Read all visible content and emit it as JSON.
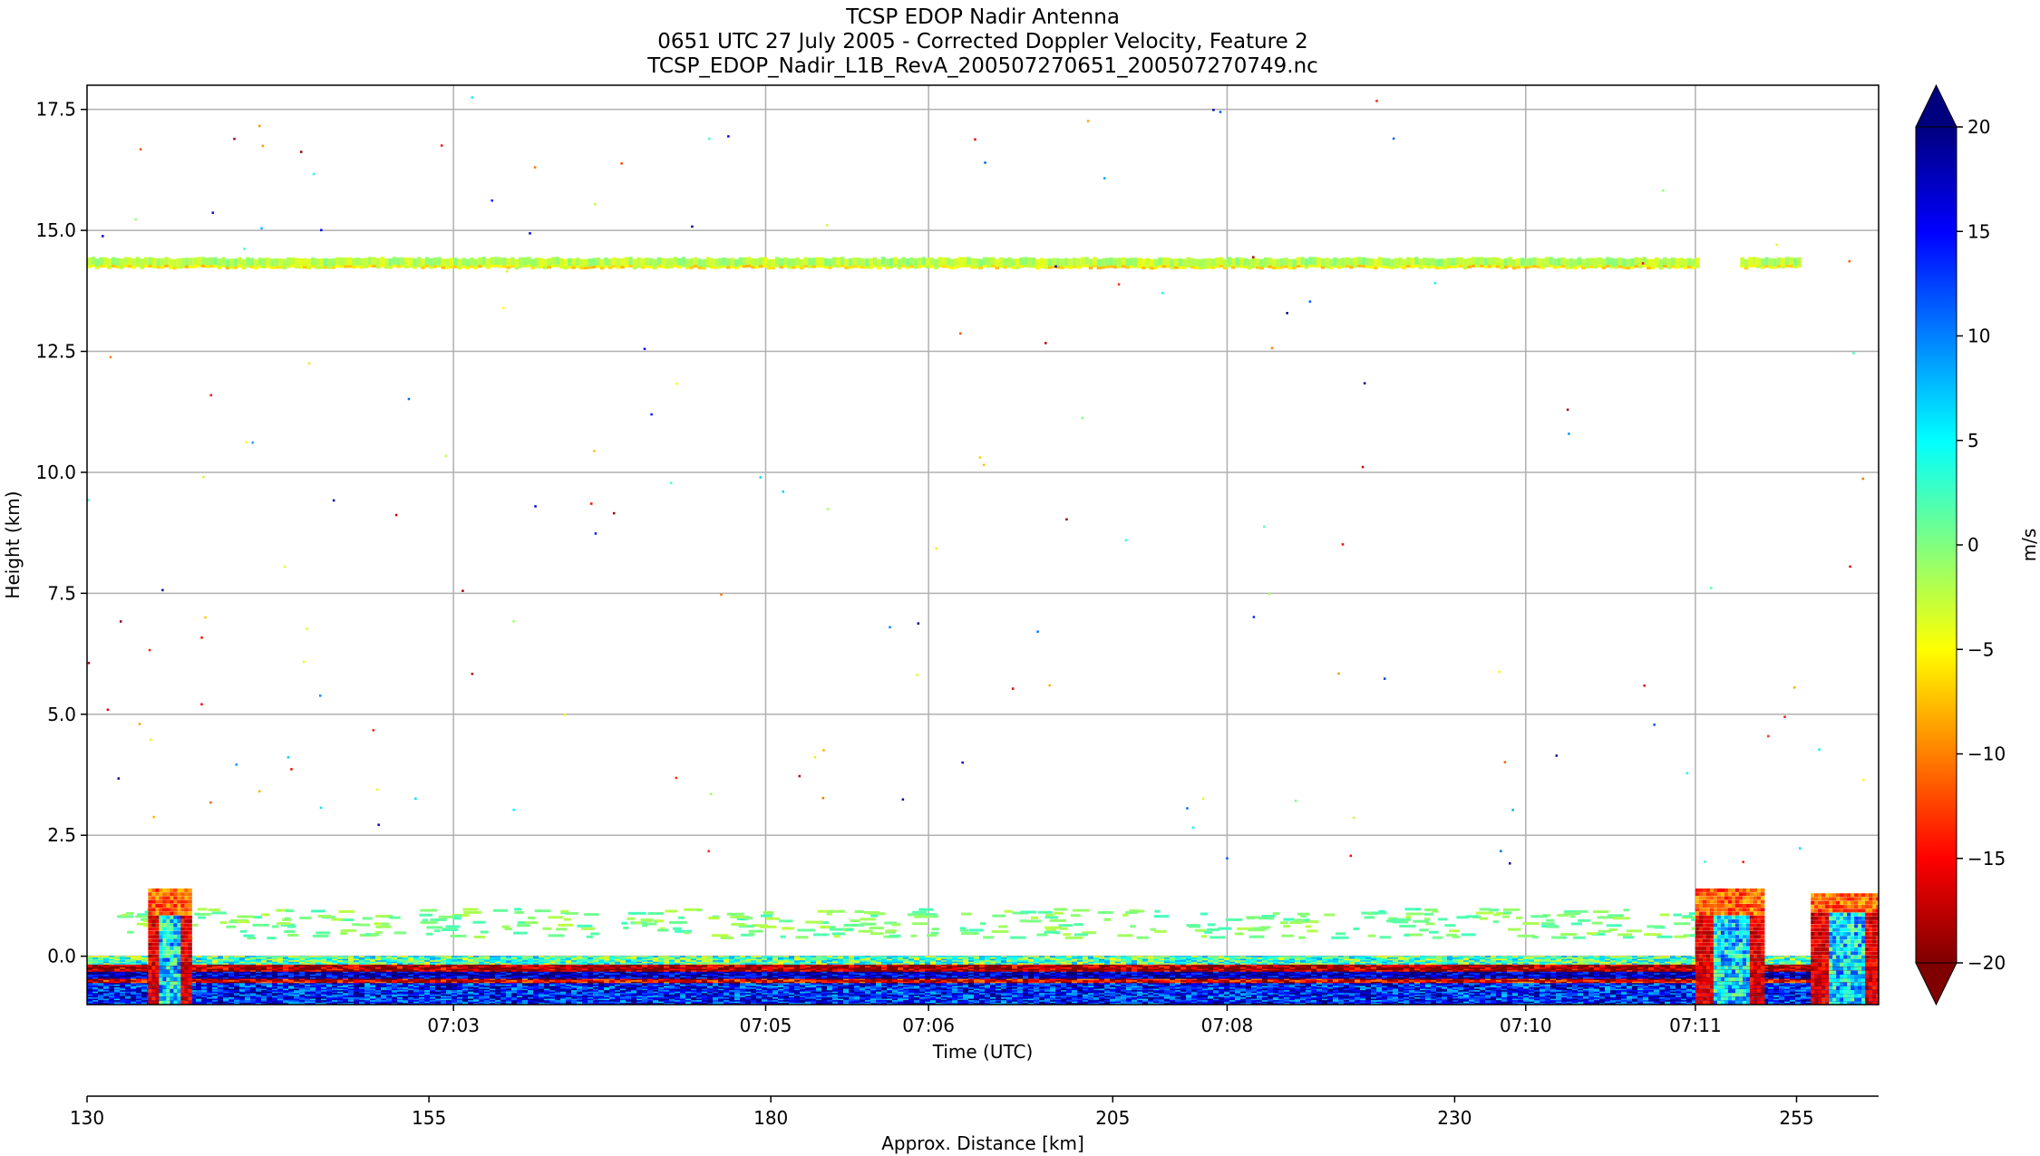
{
  "chart_data": {
    "type": "heatmap",
    "title_lines": [
      "TCSP EDOP Nadir Antenna",
      "0651 UTC 27 July 2005 - Corrected Doppler Velocity, Feature 2",
      "TCSP_EDOP_Nadir_L1B_RevA_200507270651_200507270749.nc"
    ],
    "xlabel": "Time (UTC)",
    "ylabel": "Height (km)",
    "x2label": "Approx. Distance [km]",
    "colorbar_label": "m/s",
    "colormap": "jet_reversed",
    "colormap_stops": [
      "#7f0000",
      "#ff0000",
      "#ff8000",
      "#ffff00",
      "#80ff80",
      "#00ffff",
      "#0080ff",
      "#0000ff",
      "#00007f"
    ],
    "clim": [
      -20,
      20
    ],
    "colorbar_extend": "both",
    "grid": true,
    "ylim": [
      -1,
      18
    ],
    "yticks": [
      0,
      2.5,
      5,
      7.5,
      10,
      12.5,
      15,
      17.5
    ],
    "ytick_labels": [
      "0.0",
      "2.5",
      "5.0",
      "7.5",
      "10.0",
      "12.5",
      "15.0",
      "17.5"
    ],
    "xtick_positions_minutes": [
      2.7,
      5.0,
      6.2,
      8.4,
      10.6,
      11.85
    ],
    "xtick_labels": [
      "07:03",
      "07:05",
      "07:06",
      "07:08",
      "07:10",
      "07:11"
    ],
    "xlim_minutes": [
      0,
      13.2
    ],
    "distance_axis": {
      "xlim": [
        130,
        261
      ],
      "ticks": [
        130,
        155,
        180,
        205,
        230,
        255
      ],
      "tick_labels": [
        "130",
        "155",
        "180",
        "205",
        "230",
        "255"
      ]
    },
    "colorbar_ticks": [
      -20,
      -15,
      -10,
      -5,
      0,
      5,
      10,
      15,
      20
    ],
    "colorbar_tick_labels": [
      "−20",
      "−15",
      "−10",
      "−5",
      "0",
      "5",
      "10",
      "15",
      "20"
    ],
    "features": [
      {
        "name": "upper-layer",
        "height_km": 14.35,
        "t_range_minutes": [
          0,
          12.6
        ],
        "gap_minutes": [
          11.85,
          12.15
        ],
        "velocity_ms": -2
      },
      {
        "name": "surface-return",
        "height_km_range": [
          -1,
          0
        ],
        "t_range_minutes": [
          0,
          13.2
        ],
        "velocity_ms_range": [
          -20,
          20
        ]
      },
      {
        "name": "low-cloud-band",
        "height_km_range": [
          0.4,
          1.0
        ],
        "t_range_minutes": [
          0.2,
          12.0
        ],
        "velocity_ms": 0
      },
      {
        "name": "convective-cell",
        "height_km_range": [
          -1,
          1.4
        ],
        "t_range_minutes": [
          0.45,
          0.75
        ],
        "velocity_ms_range": [
          -20,
          10
        ]
      },
      {
        "name": "convective-cell",
        "height_km_range": [
          -1,
          1.4
        ],
        "t_range_minutes": [
          11.85,
          12.35
        ],
        "velocity_ms_range": [
          -20,
          10
        ]
      },
      {
        "name": "convective-cell",
        "height_km_range": [
          -1,
          1.3
        ],
        "t_range_minutes": [
          12.7,
          13.2
        ],
        "velocity_ms_range": [
          -20,
          10
        ]
      }
    ]
  }
}
